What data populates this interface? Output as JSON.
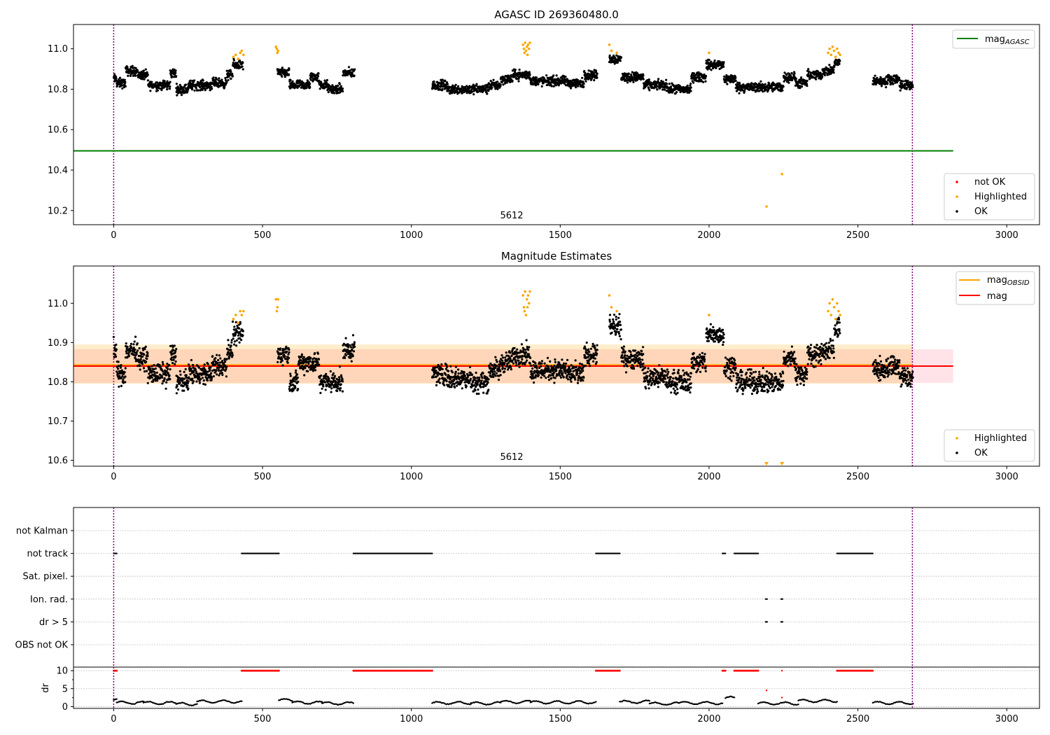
{
  "chart_data": [
    {
      "panel": "agasc",
      "type": "scatter",
      "title": "AGASC ID 269360480.0",
      "xlim": [
        -135,
        3110
      ],
      "ylim": [
        10.13,
        11.12
      ],
      "xticks": [
        0,
        500,
        1000,
        1500,
        2000,
        2500,
        3000
      ],
      "xtick_labels": [
        "0",
        "500",
        "1000",
        "1500",
        "2000",
        "2500",
        "3000"
      ],
      "yticks": [
        10.2,
        10.4,
        10.6,
        10.8,
        11.0
      ],
      "ytick_labels": [
        "10.2",
        "10.4",
        "10.6",
        "10.8",
        "11.0"
      ],
      "obsid_label": "5612",
      "obsid_label_x": 1337,
      "vlines": [
        0,
        2683
      ],
      "agasc_mag": 10.495,
      "line_xrange": [
        -135,
        2820
      ],
      "legend_line": {
        "label": "mag",
        "sub": "AGASC",
        "placement": "upper right"
      },
      "legend_points": [
        {
          "label": "not OK",
          "color": "#ff0000"
        },
        {
          "label": "Highlighted",
          "color": "#ffa500"
        },
        {
          "label": "OK",
          "color": "#000000"
        }
      ],
      "legend_points_placement": "lower right",
      "ok_segments": [
        [
          0,
          10,
          10.85
        ],
        [
          10,
          40,
          10.83
        ],
        [
          40,
          80,
          10.89
        ],
        [
          80,
          115,
          10.87
        ],
        [
          115,
          190,
          10.82
        ],
        [
          190,
          210,
          10.88
        ],
        [
          210,
          250,
          10.8
        ],
        [
          250,
          330,
          10.82
        ],
        [
          330,
          380,
          10.83
        ],
        [
          380,
          400,
          10.87
        ],
        [
          400,
          435,
          10.92
        ],
        [
          550,
          590,
          10.88
        ],
        [
          590,
          660,
          10.82
        ],
        [
          660,
          690,
          10.86
        ],
        [
          690,
          720,
          10.82
        ],
        [
          720,
          770,
          10.8
        ],
        [
          770,
          810,
          10.88
        ],
        [
          1070,
          1120,
          10.82
        ],
        [
          1120,
          1200,
          10.8
        ],
        [
          1200,
          1260,
          10.8
        ],
        [
          1260,
          1300,
          10.82
        ],
        [
          1300,
          1340,
          10.85
        ],
        [
          1340,
          1400,
          10.87
        ],
        [
          1400,
          1460,
          10.84
        ],
        [
          1460,
          1520,
          10.84
        ],
        [
          1520,
          1580,
          10.83
        ],
        [
          1580,
          1625,
          10.87
        ],
        [
          1665,
          1705,
          10.95
        ],
        [
          1705,
          1780,
          10.86
        ],
        [
          1780,
          1860,
          10.82
        ],
        [
          1860,
          1940,
          10.8
        ],
        [
          1940,
          1990,
          10.86
        ],
        [
          1990,
          2050,
          10.92
        ],
        [
          2050,
          2090,
          10.85
        ],
        [
          2090,
          2160,
          10.81
        ],
        [
          2160,
          2250,
          10.81
        ],
        [
          2250,
          2290,
          10.86
        ],
        [
          2290,
          2330,
          10.83
        ],
        [
          2330,
          2380,
          10.87
        ],
        [
          2380,
          2420,
          10.89
        ],
        [
          2420,
          2440,
          10.93
        ],
        [
          2550,
          2600,
          10.84
        ],
        [
          2600,
          2640,
          10.85
        ],
        [
          2640,
          2685,
          10.82
        ]
      ],
      "ok_scatter": 0.035,
      "highlight_points": [
        [
          402,
          10.96
        ],
        [
          410,
          10.97
        ],
        [
          418,
          10.95
        ],
        [
          425,
          10.98
        ],
        [
          430,
          10.99
        ],
        [
          436,
          10.97
        ],
        [
          545,
          11.01
        ],
        [
          548,
          11.0
        ],
        [
          550,
          10.98
        ],
        [
          552,
          10.99
        ],
        [
          1375,
          11.02
        ],
        [
          1378,
          11.0
        ],
        [
          1380,
          10.98
        ],
        [
          1382,
          11.03
        ],
        [
          1385,
          10.99
        ],
        [
          1388,
          11.01
        ],
        [
          1390,
          10.97
        ],
        [
          1392,
          11.02
        ],
        [
          1395,
          11.0
        ],
        [
          1398,
          11.03
        ],
        [
          1665,
          11.02
        ],
        [
          1672,
          10.99
        ],
        [
          1690,
          10.98
        ],
        [
          2000,
          10.98
        ],
        [
          2400,
          10.98
        ],
        [
          2405,
          11.0
        ],
        [
          2410,
          10.97
        ],
        [
          2415,
          11.01
        ],
        [
          2420,
          10.99
        ],
        [
          2425,
          10.96
        ],
        [
          2430,
          11.0
        ],
        [
          2435,
          10.98
        ],
        [
          2440,
          10.97
        ],
        [
          2193,
          10.22
        ],
        [
          2245,
          10.38
        ]
      ]
    },
    {
      "panel": "estimates",
      "type": "scatter",
      "title": "Magnitude Estimates",
      "xlim": [
        -135,
        3110
      ],
      "ylim": [
        10.585,
        11.095
      ],
      "xticks": [
        0,
        500,
        1000,
        1500,
        2000,
        2500,
        3000
      ],
      "xtick_labels": [
        "0",
        "500",
        "1000",
        "1500",
        "2000",
        "2500",
        "3000"
      ],
      "yticks": [
        10.6,
        10.7,
        10.8,
        10.9,
        11.0
      ],
      "ytick_labels": [
        "10.6",
        "10.7",
        "10.8",
        "10.9",
        "11.0"
      ],
      "obsid_label": "5612",
      "obsid_label_x": 1337,
      "vlines": [
        0,
        2683
      ],
      "mag": 10.84,
      "mag_band": [
        10.797,
        10.883
      ],
      "mag_obsid": 10.843,
      "mag_obsid_band": [
        10.795,
        10.895
      ],
      "mag_obsid_xrange": [
        0,
        2683
      ],
      "mag_xrange": [
        -135,
        2820
      ],
      "legend_lines": [
        {
          "label": "mag",
          "sub": "OBSID",
          "color": "#ffa500"
        },
        {
          "label": "mag",
          "sub": "",
          "color": "#ff0000"
        }
      ],
      "legend_lines_placement": "upper right",
      "legend_points": [
        {
          "label": "Highlighted",
          "color": "#ffa500"
        },
        {
          "label": "OK",
          "color": "#000000"
        }
      ],
      "legend_points_placement": "lower right",
      "ok_segments": [
        [
          0,
          10,
          10.88
        ],
        [
          10,
          40,
          10.82
        ],
        [
          40,
          80,
          10.88
        ],
        [
          80,
          115,
          10.86
        ],
        [
          115,
          190,
          10.82
        ],
        [
          190,
          210,
          10.87
        ],
        [
          210,
          250,
          10.8
        ],
        [
          250,
          330,
          10.82
        ],
        [
          330,
          380,
          10.84
        ],
        [
          380,
          400,
          10.88
        ],
        [
          400,
          435,
          10.92
        ],
        [
          550,
          590,
          10.87
        ],
        [
          590,
          620,
          10.8
        ],
        [
          620,
          690,
          10.85
        ],
        [
          690,
          730,
          10.8
        ],
        [
          730,
          770,
          10.8
        ],
        [
          770,
          810,
          10.88
        ],
        [
          1070,
          1120,
          10.82
        ],
        [
          1120,
          1200,
          10.81
        ],
        [
          1200,
          1260,
          10.8
        ],
        [
          1260,
          1300,
          10.83
        ],
        [
          1300,
          1340,
          10.85
        ],
        [
          1340,
          1400,
          10.87
        ],
        [
          1400,
          1460,
          10.83
        ],
        [
          1460,
          1520,
          10.83
        ],
        [
          1520,
          1580,
          10.82
        ],
        [
          1580,
          1625,
          10.87
        ],
        [
          1665,
          1705,
          10.94
        ],
        [
          1705,
          1780,
          10.86
        ],
        [
          1780,
          1860,
          10.81
        ],
        [
          1860,
          1940,
          10.8
        ],
        [
          1940,
          1990,
          10.85
        ],
        [
          1990,
          2050,
          10.92
        ],
        [
          2050,
          2090,
          10.84
        ],
        [
          2090,
          2160,
          10.8
        ],
        [
          2160,
          2250,
          10.8
        ],
        [
          2250,
          2290,
          10.86
        ],
        [
          2290,
          2330,
          10.82
        ],
        [
          2330,
          2380,
          10.87
        ],
        [
          2380,
          2420,
          10.88
        ],
        [
          2420,
          2440,
          10.94
        ],
        [
          2550,
          2600,
          10.83
        ],
        [
          2600,
          2640,
          10.84
        ],
        [
          2640,
          2685,
          10.81
        ]
      ],
      "ok_scatter": 0.04,
      "highlight_points": [
        [
          402,
          10.96
        ],
        [
          410,
          10.97
        ],
        [
          418,
          10.95
        ],
        [
          425,
          10.98
        ],
        [
          430,
          10.97
        ],
        [
          436,
          10.98
        ],
        [
          545,
          11.01
        ],
        [
          548,
          10.98
        ],
        [
          550,
          10.99
        ],
        [
          552,
          11.01
        ],
        [
          1375,
          11.02
        ],
        [
          1378,
          10.99
        ],
        [
          1380,
          10.98
        ],
        [
          1382,
          11.03
        ],
        [
          1385,
          10.97
        ],
        [
          1388,
          11.01
        ],
        [
          1390,
          10.99
        ],
        [
          1392,
          11.02
        ],
        [
          1395,
          11.0
        ],
        [
          1398,
          11.03
        ],
        [
          1665,
          11.02
        ],
        [
          1672,
          10.99
        ],
        [
          1690,
          10.98
        ],
        [
          2000,
          10.97
        ],
        [
          2400,
          10.98
        ],
        [
          2405,
          11.0
        ],
        [
          2410,
          10.97
        ],
        [
          2415,
          11.01
        ],
        [
          2420,
          10.99
        ],
        [
          2425,
          10.96
        ],
        [
          2430,
          11.0
        ],
        [
          2435,
          10.98
        ],
        [
          2440,
          10.97
        ]
      ],
      "offscale_markers_x": [
        2193,
        2245
      ]
    },
    {
      "panel": "flags",
      "type": "scatter",
      "xlim": [
        -135,
        3110
      ],
      "categories": [
        "not Kalman",
        "not track",
        "Sat. pixel.",
        "Ion. rad.",
        "dr > 5",
        "OBS not OK"
      ],
      "vlines": [
        0,
        2683
      ],
      "flag_segments": {
        "not Kalman": [],
        "not track": [
          [
            0,
            10
          ],
          [
            430,
            555
          ],
          [
            805,
            1070
          ],
          [
            1620,
            1700
          ],
          [
            2045,
            2055
          ],
          [
            2085,
            2165
          ],
          [
            2430,
            2550
          ]
        ],
        "Sat. pixel.": [],
        "Ion. rad.": [
          [
            2190,
            2195
          ],
          [
            2242,
            2247
          ]
        ],
        "dr > 5": [
          [
            2190,
            2195
          ],
          [
            2242,
            2247
          ]
        ],
        "OBS not OK": []
      }
    },
    {
      "panel": "dr",
      "type": "scatter",
      "xlim": [
        -135,
        3110
      ],
      "ylim": [
        -0.5,
        11
      ],
      "ylabel": "dr",
      "yticks": [
        0,
        5,
        10
      ],
      "ytick_labels": [
        "0",
        "5",
        "10"
      ],
      "xticks": [
        0,
        500,
        1000,
        1500,
        2000,
        2500,
        3000
      ],
      "xtick_labels": [
        "0",
        "500",
        "1000",
        "1500",
        "2000",
        "2500",
        "3000"
      ],
      "vlines": [
        0,
        2683
      ],
      "dr_clip": 10,
      "red_segments": [
        [
          0,
          10
        ],
        [
          430,
          555
        ],
        [
          805,
          1070
        ],
        [
          1620,
          1700
        ],
        [
          2045,
          2055
        ],
        [
          2085,
          2165
        ],
        [
          2430,
          2550
        ]
      ],
      "red_extra_points": [
        [
          2193,
          4.5
        ],
        [
          2245,
          10
        ],
        [
          2245,
          2.5
        ]
      ],
      "black_segments": [
        [
          0,
          10,
          1.8
        ],
        [
          10,
          100,
          1.1
        ],
        [
          100,
          210,
          1.0
        ],
        [
          210,
          280,
          0.7
        ],
        [
          280,
          430,
          1.4
        ],
        [
          555,
          600,
          1.8
        ],
        [
          600,
          700,
          1.1
        ],
        [
          700,
          805,
          0.9
        ],
        [
          1070,
          1200,
          1.0
        ],
        [
          1200,
          1300,
          0.9
        ],
        [
          1300,
          1400,
          1.3
        ],
        [
          1400,
          1620,
          1.2
        ],
        [
          1700,
          1800,
          1.3
        ],
        [
          1800,
          1900,
          0.8
        ],
        [
          1900,
          2045,
          1.0
        ],
        [
          2055,
          2085,
          2.4
        ],
        [
          2165,
          2300,
          0.9
        ],
        [
          2300,
          2430,
          1.6
        ],
        [
          2550,
          2685,
          1.0
        ]
      ]
    }
  ]
}
